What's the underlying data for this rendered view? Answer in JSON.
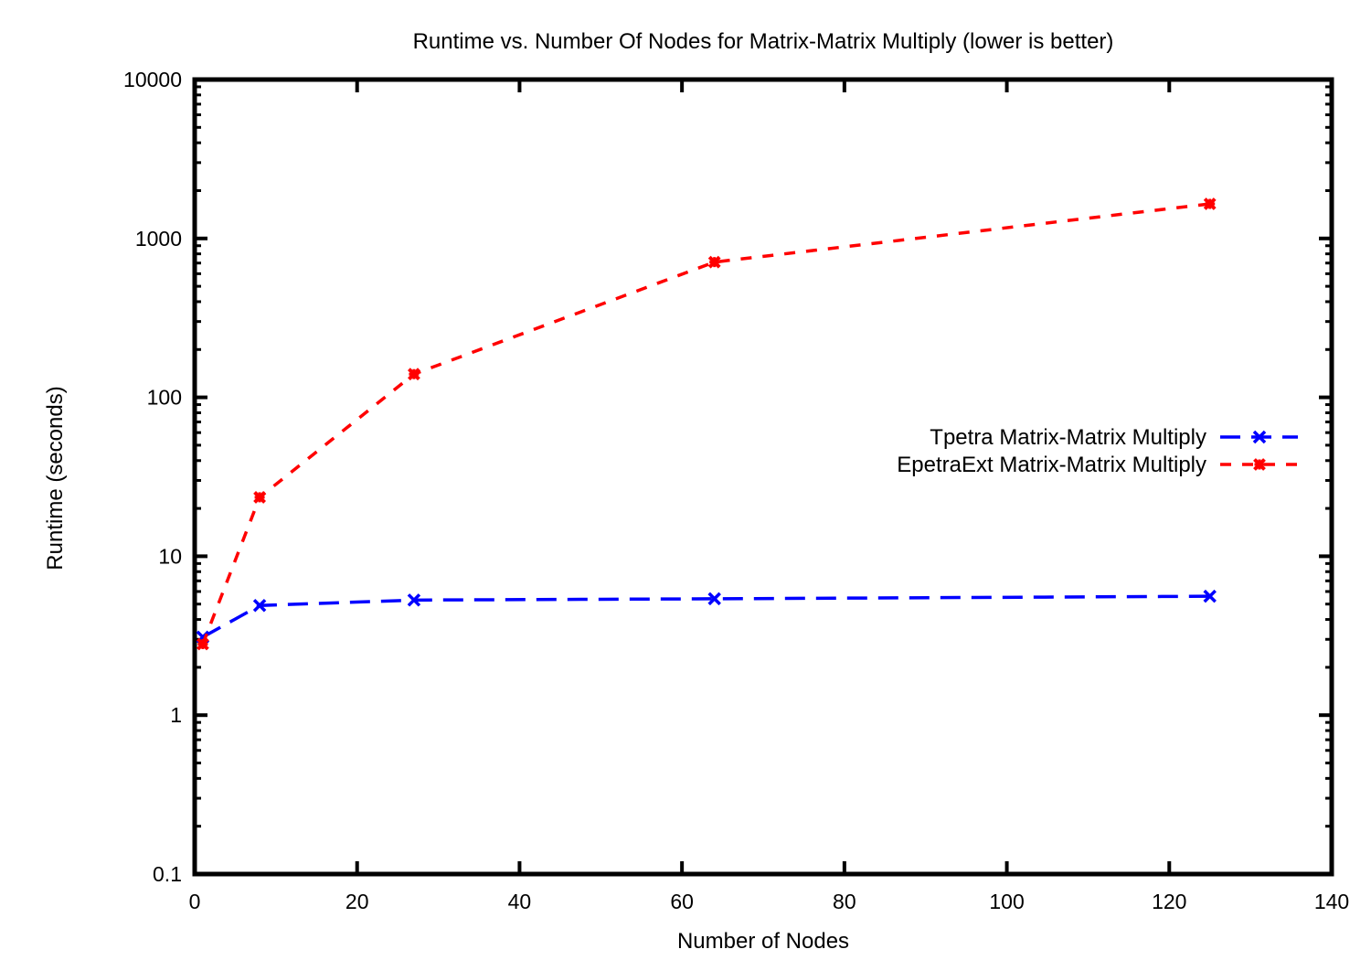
{
  "chart_data": {
    "type": "line",
    "title": "Runtime vs. Number Of Nodes for Matrix-Matrix Multiply (lower is better)",
    "xlabel": "Number of Nodes",
    "ylabel": "Runtime (seconds)",
    "xlim": [
      0,
      140
    ],
    "ylim": [
      0.1,
      10000
    ],
    "yscale": "log",
    "xticks": [
      0,
      20,
      40,
      60,
      80,
      100,
      120,
      140
    ],
    "yticks": [
      0.1,
      1,
      10,
      100,
      1000,
      10000
    ],
    "xtick_labels": [
      "0",
      "20",
      "40",
      "60",
      "80",
      "100",
      "120",
      "140"
    ],
    "ytick_labels": [
      "0.1",
      "1",
      "10",
      "100",
      "1000",
      "10000"
    ],
    "grid": false,
    "legend_position": "right",
    "series": [
      {
        "name": "Tpetra Matrix-Matrix Multiply",
        "color": "#0000ff",
        "marker": "x",
        "x": [
          1,
          8,
          27,
          64,
          125
        ],
        "y": [
          3.1,
          4.9,
          5.3,
          5.4,
          5.6
        ]
      },
      {
        "name": "EpetraExt Matrix-Matrix Multiply",
        "color": "#ff0000",
        "marker": "x-bold",
        "x": [
          1,
          8,
          27,
          64,
          125
        ],
        "y": [
          2.8,
          23.5,
          140,
          710,
          1650
        ]
      }
    ]
  }
}
